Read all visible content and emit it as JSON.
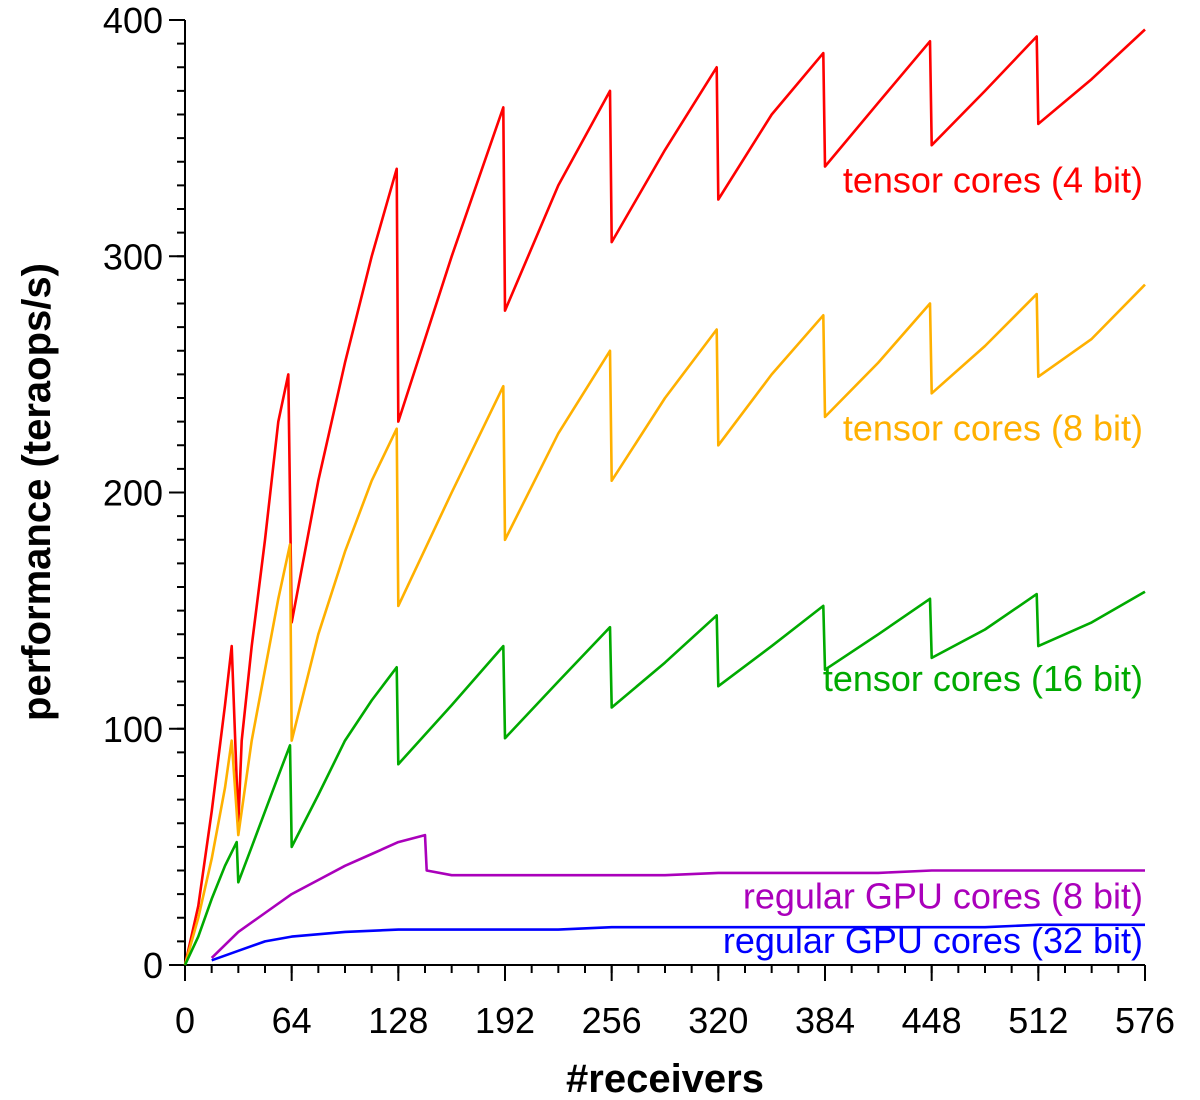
{
  "chart_data": {
    "type": "line",
    "title": "",
    "xlabel": "#receivers",
    "ylabel": "performance (teraops/s)",
    "xlim": [
      0,
      576
    ],
    "ylim": [
      0,
      400
    ],
    "xticks": [
      0,
      64,
      128,
      192,
      256,
      320,
      384,
      448,
      512,
      576
    ],
    "yticks": [
      0,
      100,
      200,
      300,
      400
    ],
    "x_tick_labels": [
      "0",
      "64",
      "128",
      "192",
      "256",
      "320",
      "384",
      "448",
      "512",
      "576"
    ],
    "y_tick_labels": [
      "0",
      "100",
      "200",
      "300",
      "400"
    ],
    "series": [
      {
        "name": "tensor cores (4 bit)",
        "color": "#ff0000",
        "x": [
          0,
          8,
          16,
          24,
          28,
          32,
          34,
          40,
          48,
          56,
          62,
          64,
          80,
          96,
          112,
          127,
          128,
          160,
          191,
          192,
          224,
          255,
          256,
          288,
          319,
          320,
          352,
          383,
          384,
          416,
          447,
          448,
          480,
          511,
          512,
          544,
          576
        ],
        "values": [
          0,
          25,
          65,
          110,
          135,
          60,
          95,
          135,
          180,
          230,
          250,
          145,
          205,
          255,
          300,
          337,
          230,
          300,
          363,
          277,
          330,
          370,
          306,
          345,
          380,
          324,
          360,
          386,
          338,
          365,
          391,
          347,
          370,
          393,
          356,
          375,
          396
        ]
      },
      {
        "name": "tensor cores (8 bit)",
        "color": "#ffb000",
        "x": [
          0,
          8,
          16,
          24,
          28,
          32,
          40,
          48,
          56,
          63,
          64,
          80,
          96,
          112,
          127,
          128,
          160,
          191,
          192,
          224,
          255,
          256,
          288,
          319,
          320,
          352,
          383,
          384,
          416,
          447,
          448,
          480,
          511,
          512,
          544,
          576
        ],
        "values": [
          0,
          20,
          45,
          75,
          95,
          55,
          95,
          125,
          155,
          178,
          95,
          140,
          175,
          205,
          227,
          152,
          200,
          245,
          180,
          225,
          260,
          205,
          240,
          269,
          220,
          250,
          275,
          232,
          255,
          280,
          242,
          262,
          284,
          249,
          265,
          288
        ]
      },
      {
        "name": "tensor cores (16 bit)",
        "color": "#00aa00",
        "x": [
          0,
          8,
          16,
          24,
          31,
          32,
          40,
          48,
          56,
          63,
          64,
          80,
          96,
          112,
          127,
          128,
          160,
          191,
          192,
          224,
          255,
          256,
          288,
          319,
          320,
          352,
          383,
          384,
          416,
          447,
          448,
          480,
          511,
          512,
          544,
          576
        ],
        "values": [
          0,
          12,
          28,
          42,
          52,
          35,
          50,
          65,
          80,
          93,
          50,
          72,
          95,
          112,
          126,
          85,
          110,
          135,
          96,
          120,
          143,
          109,
          128,
          148,
          118,
          135,
          152,
          125,
          140,
          155,
          130,
          142,
          157,
          135,
          145,
          158
        ]
      },
      {
        "name": "regular GPU cores (8 bit)",
        "color": "#aa00bb",
        "x": [
          16,
          32,
          48,
          64,
          80,
          96,
          112,
          128,
          144,
          145,
          160,
          176,
          192,
          224,
          256,
          288,
          320,
          352,
          384,
          416,
          448,
          480,
          512,
          544,
          576
        ],
        "values": [
          3,
          14,
          22,
          30,
          36,
          42,
          47,
          52,
          55,
          40,
          38,
          38,
          38,
          38,
          38,
          38,
          39,
          39,
          39,
          39,
          40,
          40,
          40,
          40,
          40
        ]
      },
      {
        "name": "regular GPU cores (32 bit)",
        "color": "#0000ff",
        "x": [
          16,
          32,
          48,
          64,
          96,
          128,
          160,
          192,
          224,
          256,
          288,
          320,
          352,
          384,
          416,
          448,
          480,
          512,
          544,
          576
        ],
        "values": [
          2,
          6,
          10,
          12,
          14,
          15,
          15,
          15,
          15,
          16,
          16,
          16,
          16,
          16,
          16,
          16,
          16,
          17,
          17,
          17
        ]
      }
    ],
    "annotations": [
      {
        "text": "tensor cores (4 bit)",
        "x": 576,
        "y": 327,
        "color": "#ff0000"
      },
      {
        "text": "tensor cores (8 bit)",
        "x": 576,
        "y": 222,
        "color": "#ffb000"
      },
      {
        "text": "tensor cores (16 bit)",
        "x": 576,
        "y": 116,
        "color": "#00aa00"
      },
      {
        "text": "regular GPU cores (8 bit)",
        "x": 576,
        "y": 24,
        "color": "#aa00bb"
      },
      {
        "text": "regular GPU cores (32 bit)",
        "x": 576,
        "y": 5,
        "color": "#0000ff"
      }
    ]
  }
}
